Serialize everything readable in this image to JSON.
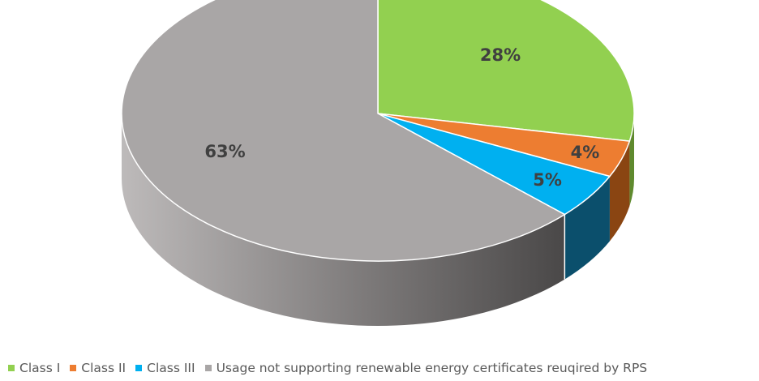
{
  "chart_data": {
    "type": "pie",
    "style": "3d",
    "start_angle": "top",
    "direction": "clockwise",
    "legend_position": "bottom",
    "slices": [
      {
        "label": "Class I",
        "value": 28,
        "display": "28%",
        "color": "#92d050",
        "side_color": "#5f8a2e"
      },
      {
        "label": "Class II",
        "value": 4,
        "display": "4%",
        "color": "#ed7d31",
        "side_color": "#8a4512"
      },
      {
        "label": "Class III",
        "value": 5,
        "display": "5%",
        "color": "#00b0f0",
        "side_color": "#0b4f6c"
      },
      {
        "label": "Usage not supporting renewable energy certificates reuqired by RPS",
        "value": 63,
        "display": "63%",
        "color": "#a9a6a6",
        "side_color": "#6f6d6d"
      }
    ]
  }
}
